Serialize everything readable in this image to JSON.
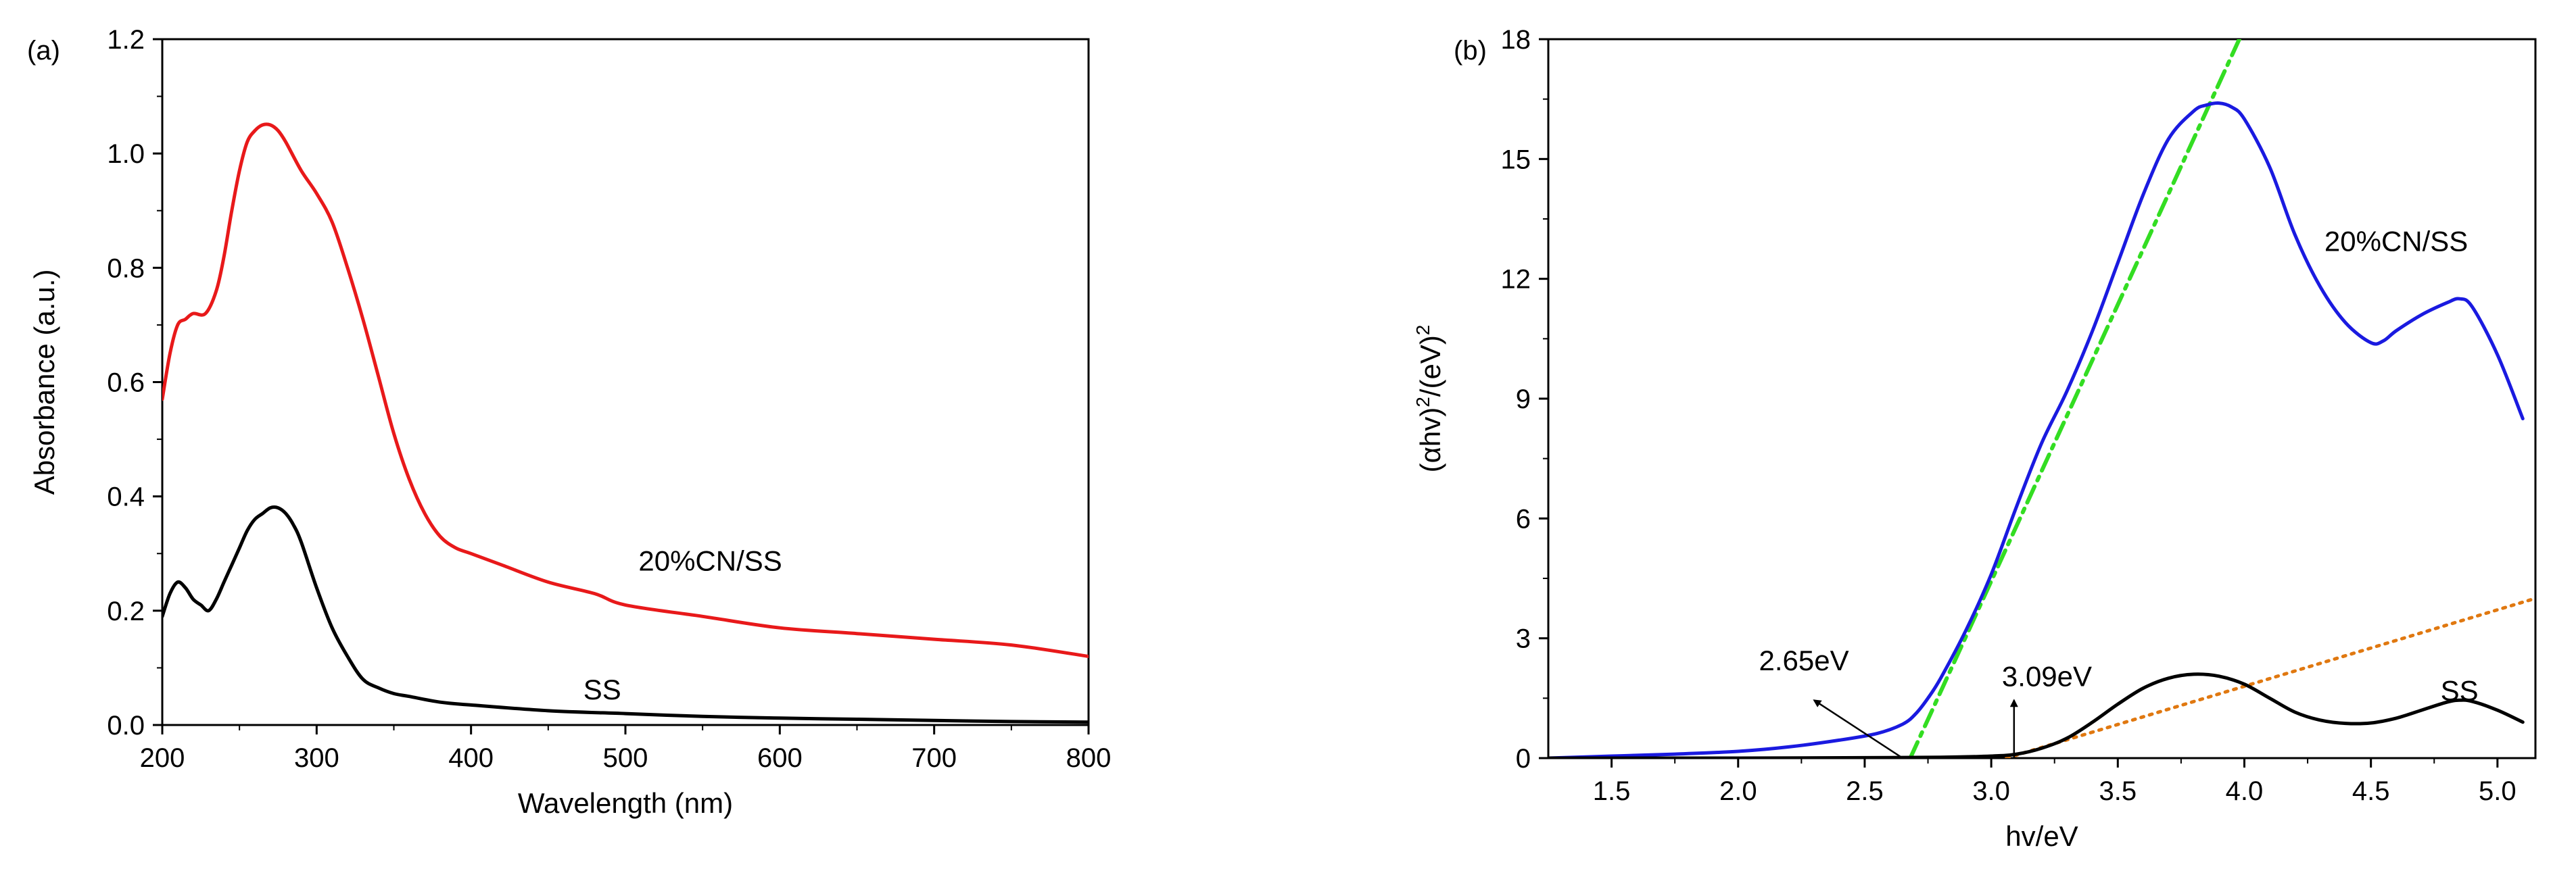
{
  "chart_data": [
    {
      "type": "line",
      "panel_label": "(a)",
      "xlabel": "Wavelength (nm)",
      "ylabel": "Absorbance (a.u.)",
      "xlim": [
        200,
        800
      ],
      "ylim": [
        0.0,
        1.2
      ],
      "xticks": [
        200,
        300,
        400,
        500,
        600,
        700,
        800
      ],
      "xtick_labels": [
        "200",
        "300",
        "400",
        "500",
        "600",
        "700",
        "800"
      ],
      "yticks": [
        0.0,
        0.2,
        0.4,
        0.6,
        0.8,
        1.0,
        1.2
      ],
      "ytick_labels": [
        "0.0",
        "0.2",
        "0.4",
        "0.6",
        "0.8",
        "1.0",
        "1.2"
      ],
      "grid": false,
      "series": [
        {
          "name": "20%CN/SS",
          "color": "#e8191a",
          "x": [
            200,
            205,
            210,
            215,
            220,
            228,
            235,
            240,
            245,
            250,
            255,
            260,
            265,
            270,
            275,
            280,
            290,
            300,
            310,
            320,
            330,
            340,
            350,
            360,
            370,
            380,
            390,
            400,
            420,
            450,
            480,
            500,
            550,
            600,
            650,
            700,
            750,
            800
          ],
          "y": [
            0.57,
            0.65,
            0.7,
            0.71,
            0.72,
            0.72,
            0.76,
            0.82,
            0.9,
            0.97,
            1.02,
            1.04,
            1.05,
            1.05,
            1.04,
            1.02,
            0.97,
            0.93,
            0.88,
            0.8,
            0.71,
            0.61,
            0.51,
            0.43,
            0.37,
            0.33,
            0.31,
            0.3,
            0.28,
            0.25,
            0.23,
            0.21,
            0.19,
            0.17,
            0.16,
            0.15,
            0.14,
            0.12
          ]
        },
        {
          "name": "SS",
          "color": "#000000",
          "x": [
            200,
            205,
            210,
            215,
            220,
            225,
            230,
            235,
            240,
            245,
            250,
            255,
            260,
            265,
            270,
            275,
            280,
            285,
            290,
            300,
            310,
            320,
            330,
            340,
            350,
            360,
            380,
            400,
            450,
            500,
            550,
            600,
            650,
            700,
            750,
            800
          ],
          "y": [
            0.19,
            0.23,
            0.25,
            0.24,
            0.22,
            0.21,
            0.2,
            0.22,
            0.25,
            0.28,
            0.31,
            0.34,
            0.36,
            0.37,
            0.38,
            0.38,
            0.37,
            0.35,
            0.32,
            0.24,
            0.17,
            0.12,
            0.08,
            0.065,
            0.055,
            0.05,
            0.04,
            0.035,
            0.025,
            0.02,
            0.015,
            0.012,
            0.01,
            0.008,
            0.006,
            0.005
          ]
        }
      ],
      "annotations": [
        {
          "text": "20%CN/SS",
          "x": 555,
          "y": 0.27
        },
        {
          "text": "SS",
          "x": 485,
          "y": 0.045
        }
      ]
    },
    {
      "type": "line",
      "panel_label": "(b)",
      "xlabel": "hv/eV",
      "ylabel_main": "(αhv)",
      "ylabel_exp": "2",
      "ylabel_mid": "/(eV)",
      "xlim": [
        1.25,
        5.15
      ],
      "ylim": [
        0,
        18
      ],
      "xticks": [
        1.5,
        2.0,
        2.5,
        3.0,
        3.5,
        4.0,
        4.5,
        5.0
      ],
      "xtick_labels": [
        "1.5",
        "2.0",
        "2.5",
        "3.0",
        "3.5",
        "4.0",
        "4.5",
        "5.0"
      ],
      "yticks": [
        0,
        3,
        6,
        9,
        12,
        15,
        18
      ],
      "ytick_labels": [
        "0",
        "3",
        "6",
        "9",
        "12",
        "15",
        "18"
      ],
      "grid": false,
      "series": [
        {
          "name": "20%CN/SS",
          "color": "#1a1ae0",
          "x": [
            1.25,
            1.5,
            1.75,
            2.0,
            2.2,
            2.4,
            2.55,
            2.65,
            2.7,
            2.75,
            2.8,
            2.9,
            3.0,
            3.1,
            3.2,
            3.3,
            3.4,
            3.5,
            3.6,
            3.7,
            3.8,
            3.85,
            3.9,
            3.95,
            4.0,
            4.1,
            4.2,
            4.3,
            4.4,
            4.5,
            4.55,
            4.6,
            4.7,
            4.8,
            4.85,
            4.9,
            5.0,
            5.1
          ],
          "y": [
            0.0,
            0.05,
            0.1,
            0.17,
            0.28,
            0.45,
            0.62,
            0.85,
            1.1,
            1.5,
            2.0,
            3.2,
            4.6,
            6.3,
            7.9,
            9.2,
            10.7,
            12.4,
            14.1,
            15.5,
            16.2,
            16.35,
            16.4,
            16.3,
            16.0,
            14.8,
            13.1,
            11.8,
            10.9,
            10.4,
            10.45,
            10.7,
            11.1,
            11.4,
            11.5,
            11.3,
            10.1,
            8.5
          ]
        },
        {
          "name": "SS",
          "color": "#000000",
          "x": [
            1.25,
            2.0,
            2.5,
            2.8,
            3.0,
            3.1,
            3.2,
            3.3,
            3.4,
            3.5,
            3.6,
            3.7,
            3.8,
            3.9,
            4.0,
            4.1,
            4.2,
            4.3,
            4.4,
            4.5,
            4.6,
            4.7,
            4.8,
            4.85,
            4.9,
            5.0,
            5.1
          ],
          "y": [
            0.0,
            0.0,
            0.01,
            0.02,
            0.05,
            0.1,
            0.25,
            0.5,
            0.9,
            1.35,
            1.75,
            2.0,
            2.1,
            2.05,
            1.85,
            1.5,
            1.15,
            0.95,
            0.87,
            0.88,
            1.0,
            1.2,
            1.4,
            1.45,
            1.42,
            1.2,
            0.9
          ]
        }
      ],
      "fit_lines": [
        {
          "color": "#33dd22",
          "style": "dash-dot",
          "x": [
            2.68,
            3.98
          ],
          "y": [
            0.0,
            18.0
          ]
        },
        {
          "color": "#e07810",
          "style": "dotted",
          "x": [
            3.06,
            5.15
          ],
          "y": [
            0.0,
            4.0
          ]
        }
      ],
      "arrows": [
        {
          "from": [
            2.65,
            0.0
          ],
          "to": [
            2.3,
            1.45
          ]
        },
        {
          "from": [
            3.09,
            0.0
          ],
          "to": [
            3.09,
            1.45
          ]
        }
      ],
      "annotations": [
        {
          "text": "20%CN/SS",
          "x": 4.6,
          "y": 12.7
        },
        {
          "text": "SS",
          "x": 4.85,
          "y": 1.45
        },
        {
          "text": "2.65eV",
          "x": 2.26,
          "y": 2.2
        },
        {
          "text": "3.09eV",
          "x": 3.22,
          "y": 1.8
        }
      ]
    }
  ]
}
